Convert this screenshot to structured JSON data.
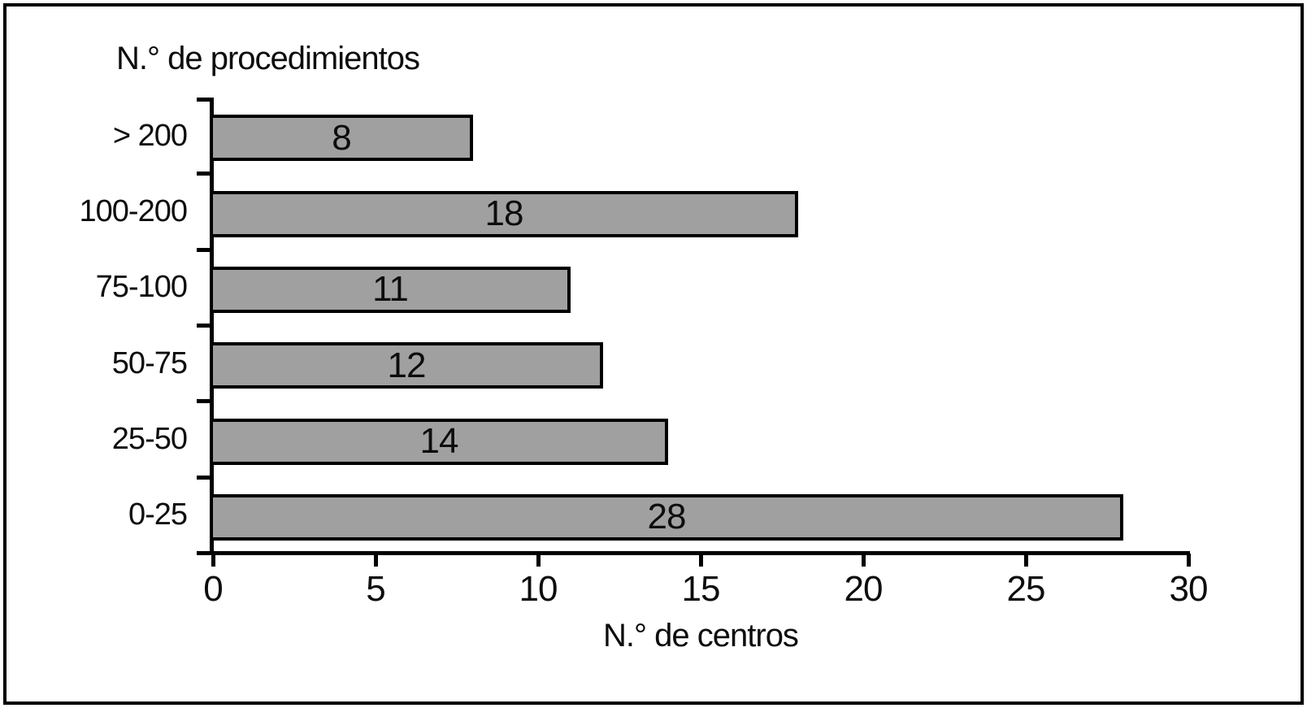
{
  "chart_data": {
    "type": "bar",
    "orientation": "horizontal",
    "title": "N.° de procedimientos",
    "xlabel": "N.° de centros",
    "categories": [
      "> 200",
      "100-200",
      "75-100",
      "50-75",
      "25-50",
      "0-25"
    ],
    "values": [
      8,
      18,
      11,
      12,
      14,
      28
    ],
    "xticks": [
      0,
      5,
      10,
      15,
      20,
      25,
      30
    ],
    "xlim": [
      0,
      30
    ],
    "grid": false,
    "legend": "none",
    "bar_fill": "#a0a0a0",
    "bar_border": "#000000",
    "value_label_position": "inside-center"
  }
}
